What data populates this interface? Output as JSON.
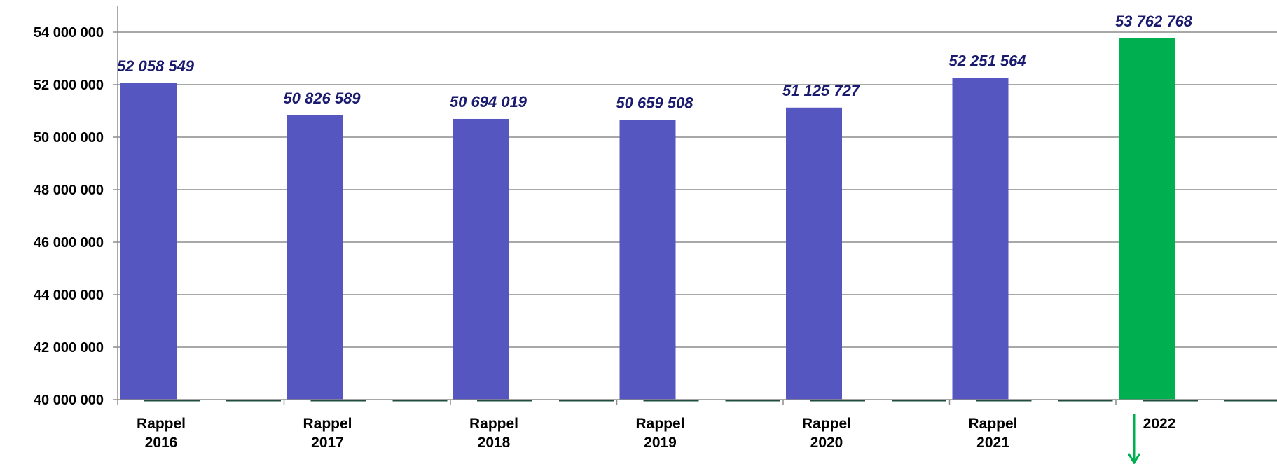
{
  "chart_data": {
    "type": "bar",
    "title": "",
    "xlabel": "",
    "ylabel": "",
    "ylim": [
      40000000,
      54800000
    ],
    "yticks": [
      {
        "value": 40000000,
        "label": "40 000 000"
      },
      {
        "value": 42000000,
        "label": "42 000 000"
      },
      {
        "value": 44000000,
        "label": "44 000 000"
      },
      {
        "value": 46000000,
        "label": "46 000 000"
      },
      {
        "value": 48000000,
        "label": "48 000 000"
      },
      {
        "value": 50000000,
        "label": "50 000 000"
      },
      {
        "value": 52000000,
        "label": "52 000 000"
      },
      {
        "value": 54000000,
        "label": "54 000 000"
      }
    ],
    "grid": true,
    "legend": "none",
    "categories": [
      {
        "lines": [
          "Rappel",
          "2016"
        ]
      },
      {
        "lines": [
          "Rappel",
          "2017"
        ]
      },
      {
        "lines": [
          "Rappel",
          "2018"
        ]
      },
      {
        "lines": [
          "Rappel",
          "2019"
        ]
      },
      {
        "lines": [
          "Rappel",
          "2020"
        ]
      },
      {
        "lines": [
          "Rappel",
          "2021"
        ]
      },
      {
        "lines": [
          "2022"
        ]
      }
    ],
    "values": [
      52058549,
      50826589,
      50694019,
      50659508,
      51125727,
      52251564,
      53762768
    ],
    "data_labels": [
      "52 058 549",
      "50 826 589",
      "50 694 019",
      "50 659 508",
      "51 125 727",
      "52 251 564",
      "53 762 768"
    ],
    "colors": {
      "bar": "#5556c0",
      "highlight_bar": "#00b050",
      "data_label": "#1a1a6e",
      "grid": "#8c8c8c",
      "axis": "#8c8c8c",
      "arrow": "#00b050"
    },
    "highlight_index": 6,
    "annotation_icon": "down-arrow-icon"
  }
}
